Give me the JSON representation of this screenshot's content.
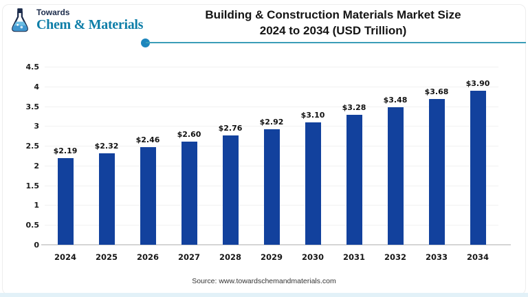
{
  "logo": {
    "brand_top": "Towards",
    "brand_name": "Chem & Materials"
  },
  "header": {
    "title_line1": "Building & Construction Materials Market Size",
    "title_line2": "2024 to 2034 (USD Trillion)"
  },
  "chart_data": {
    "type": "bar",
    "title": "Building & Construction Materials Market Size 2024 to 2034 (USD Trillion)",
    "categories": [
      "2024",
      "2025",
      "2026",
      "2027",
      "2028",
      "2029",
      "2030",
      "2031",
      "2032",
      "2033",
      "2034"
    ],
    "values": [
      2.19,
      2.32,
      2.46,
      2.6,
      2.76,
      2.92,
      3.1,
      3.28,
      3.48,
      3.68,
      3.9
    ],
    "value_labels": [
      "$2.19",
      "$2.32",
      "$2.46",
      "$2.60",
      "$2.76",
      "$2.92",
      "$3.10",
      "$3.28",
      "$3.48",
      "$3.68",
      "$3.90"
    ],
    "xlabel": "",
    "ylabel": "",
    "ylim": [
      0,
      4.5
    ],
    "yticks": [
      "0",
      "0.5",
      "1",
      "1.5",
      "2",
      "2.5",
      "3",
      "3.5",
      "4",
      "4.5"
    ],
    "grid": true,
    "legend": false,
    "bar_color": "#12419d"
  },
  "footer": {
    "source": "Source: www.towardschemandmaterials.com"
  },
  "colors": {
    "bar": "#12419d",
    "divider_line": "#3a9db8",
    "divider_dot": "#1d86bd",
    "brand_navy": "#1b2b4b",
    "brand_teal": "#0e7ea8",
    "bottom_strip": "#e2f1f8"
  }
}
